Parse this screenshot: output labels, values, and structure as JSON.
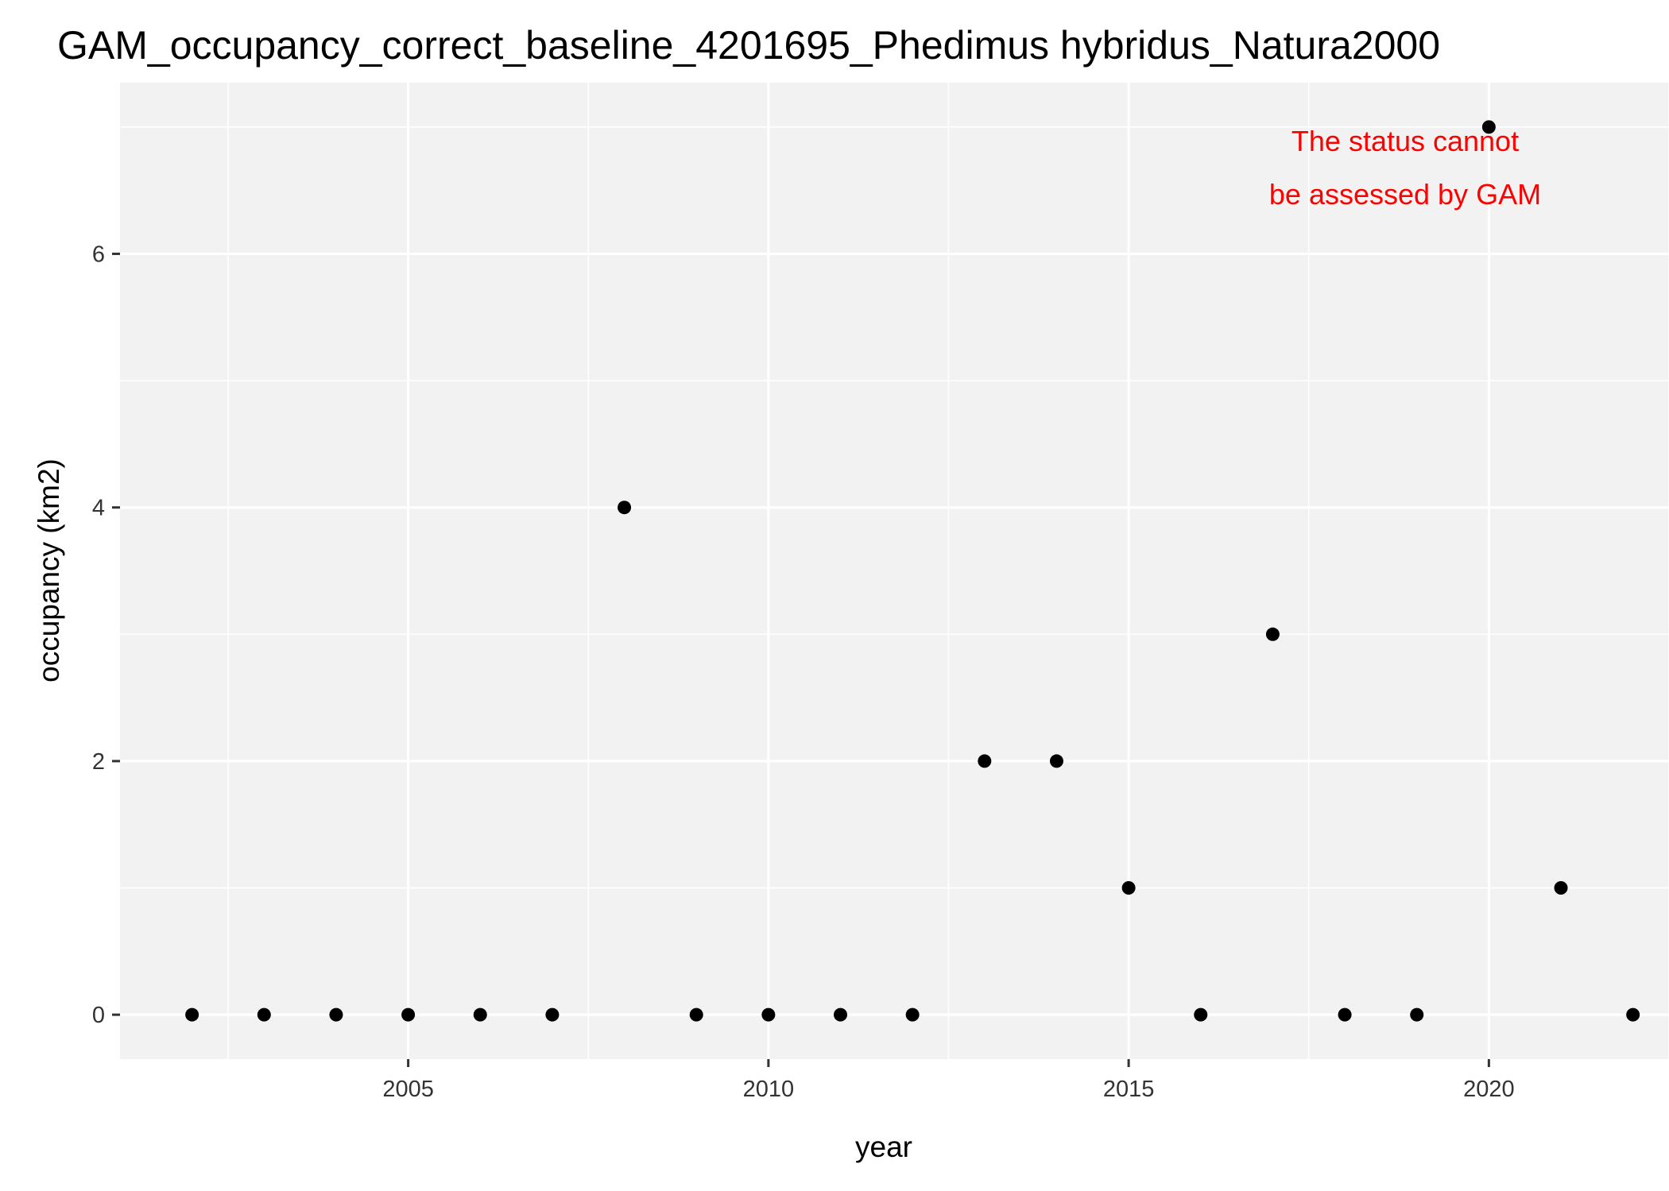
{
  "chart_data": {
    "type": "scatter",
    "title": "GAM_occupancy_correct_baseline_4201695_Phedimus hybridus_Natura2000",
    "xlabel": "year",
    "ylabel": "occupancy (km2)",
    "xlim": [
      2001,
      2022.5
    ],
    "ylim": [
      -0.35,
      7.35
    ],
    "x_ticks": [
      2005,
      2010,
      2015,
      2020
    ],
    "x_tick_labels": [
      "2005",
      "2010",
      "2015",
      "2020"
    ],
    "y_ticks": [
      0,
      2,
      4,
      6
    ],
    "y_tick_labels": [
      "0",
      "2",
      "4",
      "6"
    ],
    "grid": true,
    "points": [
      {
        "x": 2002,
        "y": 0
      },
      {
        "x": 2003,
        "y": 0
      },
      {
        "x": 2004,
        "y": 0
      },
      {
        "x": 2005,
        "y": 0
      },
      {
        "x": 2006,
        "y": 0
      },
      {
        "x": 2007,
        "y": 0
      },
      {
        "x": 2008,
        "y": 4
      },
      {
        "x": 2009,
        "y": 0
      },
      {
        "x": 2010,
        "y": 0
      },
      {
        "x": 2011,
        "y": 0
      },
      {
        "x": 2012,
        "y": 0
      },
      {
        "x": 2013,
        "y": 2
      },
      {
        "x": 2014,
        "y": 2
      },
      {
        "x": 2015,
        "y": 1
      },
      {
        "x": 2016,
        "y": 0
      },
      {
        "x": 2017,
        "y": 3
      },
      {
        "x": 2018,
        "y": 0
      },
      {
        "x": 2019,
        "y": 0
      },
      {
        "x": 2020,
        "y": 7
      },
      {
        "x": 2021,
        "y": 1
      },
      {
        "x": 2022,
        "y": 0
      }
    ],
    "annotation": {
      "lines": [
        "The status cannot",
        "be assessed by GAM"
      ],
      "color": "#ff0000"
    },
    "colors": {
      "panel": "#f2f2f2",
      "grid": "#ffffff",
      "point": "#000000"
    }
  }
}
